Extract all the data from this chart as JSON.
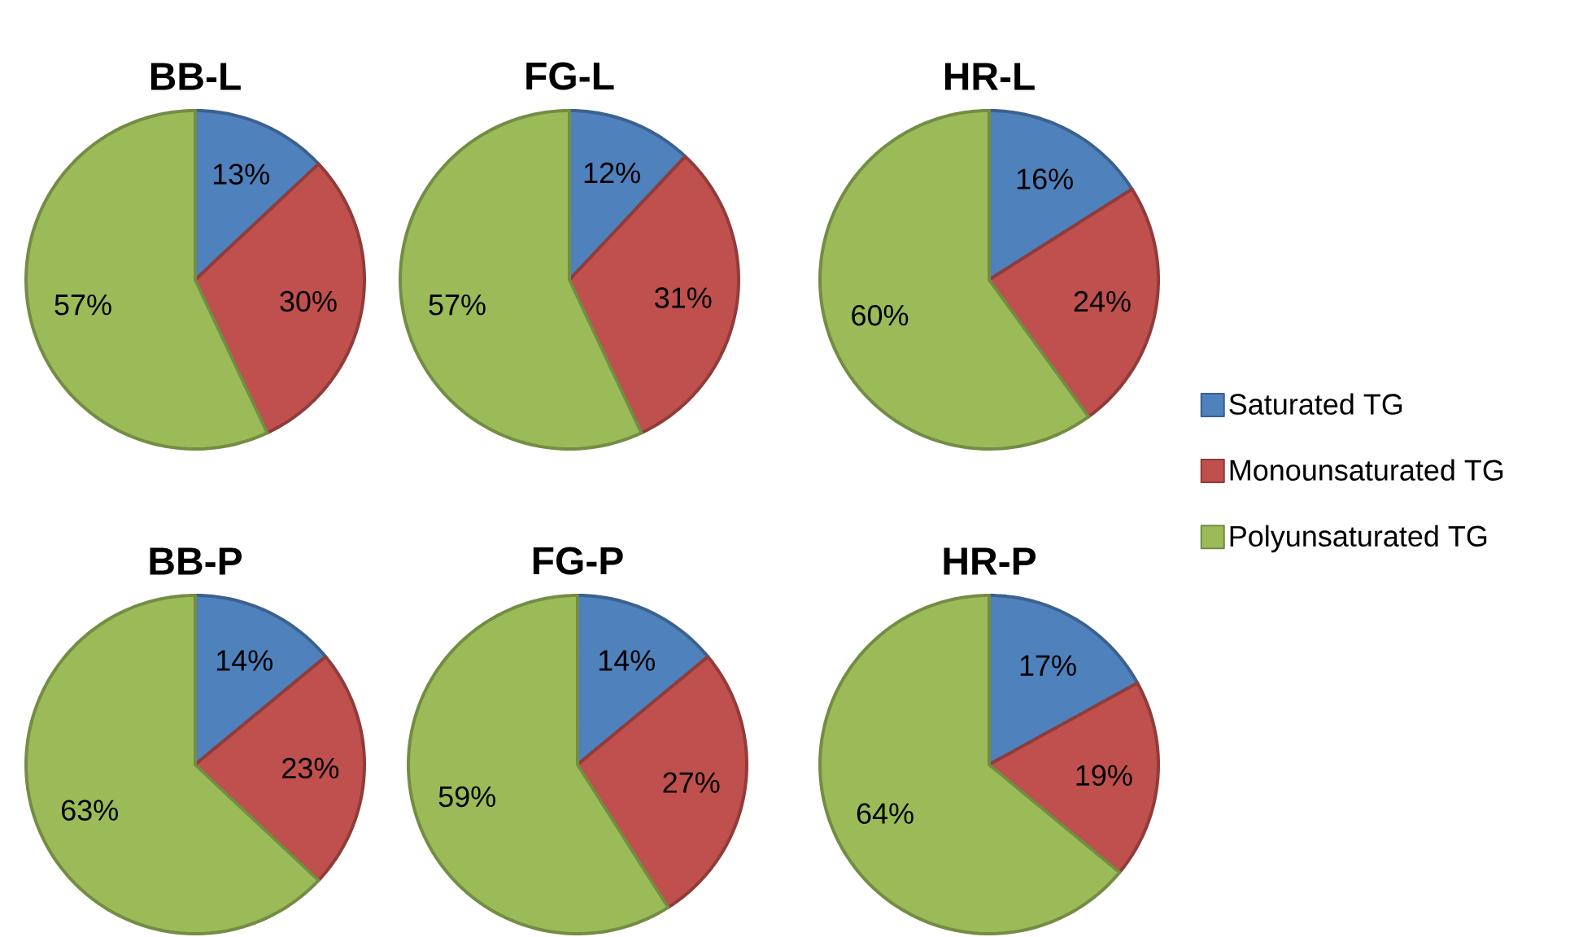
{
  "chart_data": [
    {
      "type": "pie",
      "title": "BB-L",
      "categories": [
        null,
        null,
        null
      ],
      "values": [
        13,
        30,
        57
      ],
      "value_labels": [
        "13%",
        "30%",
        "57%"
      ],
      "colors": [
        "#4f81bd",
        "#c0504d",
        "#9bbb59"
      ]
    },
    {
      "type": "pie",
      "title": "FG-L",
      "categories": [
        null,
        null,
        null
      ],
      "values": [
        12,
        31,
        57
      ],
      "value_labels": [
        "12%",
        "31%",
        "57%"
      ],
      "colors": [
        "#4f81bd",
        "#c0504d",
        "#9bbb59"
      ]
    },
    {
      "type": "pie",
      "title": "HR-L",
      "categories": [
        "Saturated TG",
        "Monounsaturated TG",
        "Polyunsaturated TG"
      ],
      "values": [
        16,
        24,
        60
      ],
      "value_labels": [
        "16%",
        "24%",
        "60%"
      ],
      "colors": [
        "#4f81bd",
        "#c0504d",
        "#9bbb59"
      ],
      "legend": "right"
    },
    {
      "type": "pie",
      "title": "BB-P",
      "categories": [
        null,
        null,
        null
      ],
      "values": [
        14,
        23,
        63
      ],
      "value_labels": [
        "14%",
        "23%",
        "63%"
      ],
      "colors": [
        "#4f81bd",
        "#c0504d",
        "#9bbb59"
      ]
    },
    {
      "type": "pie",
      "title": "FG-P",
      "categories": [
        null,
        null,
        null
      ],
      "values": [
        14,
        27,
        59
      ],
      "value_labels": [
        "14%",
        "27%",
        "59%"
      ],
      "colors": [
        "#4f81bd",
        "#c0504d",
        "#9bbb59"
      ]
    },
    {
      "type": "pie",
      "title": "HR-P",
      "categories": [
        null,
        null,
        null
      ],
      "values": [
        17,
        19,
        64
      ],
      "value_labels": [
        "17%",
        "19%",
        "64%"
      ],
      "colors": [
        "#4f81bd",
        "#c0504d",
        "#9bbb59"
      ]
    }
  ]
}
